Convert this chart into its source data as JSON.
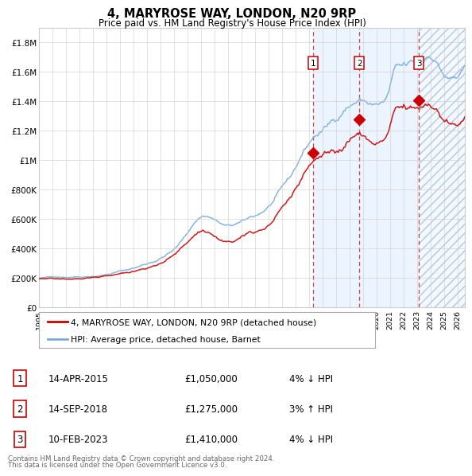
{
  "title": "4, MARYROSE WAY, LONDON, N20 9RP",
  "subtitle": "Price paid vs. HM Land Registry's House Price Index (HPI)",
  "xmin": 1995.0,
  "xmax": 2026.5,
  "ymin": 0,
  "ymax": 1900000,
  "yticks": [
    0,
    200000,
    400000,
    600000,
    800000,
    1000000,
    1200000,
    1400000,
    1600000,
    1800000
  ],
  "ytick_labels": [
    "£0",
    "£200K",
    "£400K",
    "£600K",
    "£800K",
    "£1M",
    "£1.2M",
    "£1.4M",
    "£1.6M",
    "£1.8M"
  ],
  "transactions": [
    {
      "num": 1,
      "date_str": "14-APR-2015",
      "year": 2015.28,
      "price": 1050000,
      "pct": "4%",
      "direction": "↓"
    },
    {
      "num": 2,
      "date_str": "14-SEP-2018",
      "year": 2018.7,
      "price": 1275000,
      "pct": "3%",
      "direction": "↑"
    },
    {
      "num": 3,
      "date_str": "10-FEB-2023",
      "year": 2023.11,
      "price": 1410000,
      "pct": "4%",
      "direction": "↓"
    }
  ],
  "red_line_color": "#cc0000",
  "blue_line_color": "#7aaddd",
  "shade_color": "#ddeeff",
  "legend_label_red": "4, MARYROSE WAY, LONDON, N20 9RP (detached house)",
  "legend_label_blue": "HPI: Average price, detached house, Barnet",
  "footer_line1": "Contains HM Land Registry data © Crown copyright and database right 2024.",
  "footer_line2": "This data is licensed under the Open Government Licence v3.0.",
  "background_color": "#ffffff",
  "grid_color": "#cccccc"
}
